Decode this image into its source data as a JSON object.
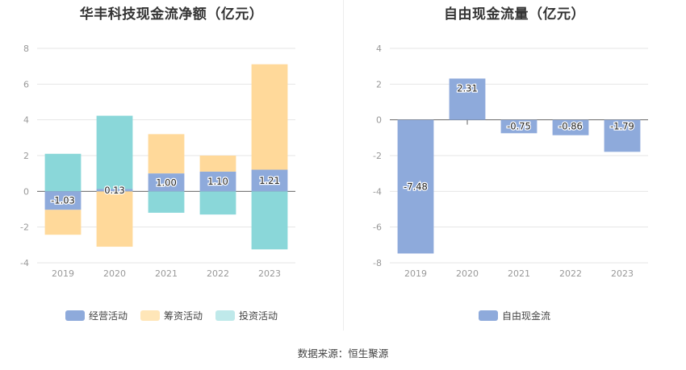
{
  "chart_data": [
    {
      "type": "bar",
      "stacked": true,
      "title": "华丰科技现金流净额（亿元）",
      "categories": [
        "2019",
        "2020",
        "2021",
        "2022",
        "2023"
      ],
      "series": [
        {
          "name": "经营活动",
          "color": "#8eaadb",
          "values": [
            -1.03,
            0.13,
            1.0,
            1.1,
            1.21
          ]
        },
        {
          "name": "筹资活动",
          "color": "#ffd99a",
          "values": [
            -1.4,
            -3.1,
            2.2,
            0.9,
            5.9
          ]
        },
        {
          "name": "投资活动",
          "color": "#8ad7d9",
          "values": [
            2.1,
            4.1,
            -1.2,
            -1.3,
            -3.25
          ]
        }
      ],
      "yticks": [
        "8",
        "6",
        "4",
        "2",
        "0",
        "-2",
        "-4"
      ],
      "ylim": [
        -4,
        8
      ],
      "labels": [
        "-1.03",
        "0.13",
        "1.00",
        "1.10",
        "1.21"
      ],
      "legend_position": "bottom",
      "grid": true
    },
    {
      "type": "bar",
      "waterfall": true,
      "title": "自由现金流量（亿元）",
      "categories": [
        "2019",
        "2020",
        "2021",
        "2022",
        "2023"
      ],
      "series": [
        {
          "name": "自由现金流",
          "color": "#8eaadb",
          "values": [
            -7.48,
            2.31,
            -0.75,
            -0.86,
            -1.79
          ]
        }
      ],
      "yticks": [
        "4",
        "2",
        "0",
        "-2",
        "-4",
        "-6",
        "-8"
      ],
      "ylim": [
        -8,
        4
      ],
      "labels": [
        "-7.48",
        "2.31",
        "-0.75",
        "-0.86",
        "-1.79"
      ],
      "legend_position": "bottom",
      "grid": true
    }
  ],
  "source": "数据来源：恒生聚源"
}
